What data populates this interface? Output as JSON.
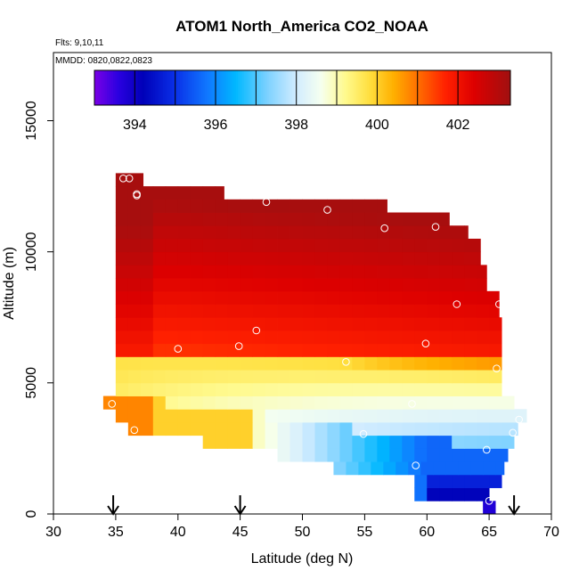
{
  "chart_data": {
    "type": "heatmap",
    "title": "ATOM1 North_America CO2_NOAA",
    "annotations": [
      "Flts: 9,10,11",
      "MMDD: 0820,0822,0823"
    ],
    "xlabel": "Latitude (deg N)",
    "ylabel": "Altitude (m)",
    "xlim": [
      30,
      70
    ],
    "ylim": [
      0,
      17600
    ],
    "x_ticks": [
      30,
      35,
      40,
      45,
      50,
      55,
      60,
      65,
      70
    ],
    "y_ticks": [
      0,
      5000,
      10000,
      15000
    ],
    "grid": false,
    "colorbar": {
      "placement": "top",
      "range": [
        393,
        403.3
      ],
      "ticks": [
        394,
        396,
        398,
        400,
        402
      ],
      "boundaries": [
        393,
        394,
        395,
        396,
        397,
        398,
        399,
        400,
        401,
        402,
        403.3
      ],
      "stops": [
        {
          "v": 393.0,
          "c": "#7a00e6"
        },
        {
          "v": 393.6,
          "c": "#2a00e0"
        },
        {
          "v": 394.2,
          "c": "#0000b8"
        },
        {
          "v": 395.0,
          "c": "#0a30e8"
        },
        {
          "v": 395.8,
          "c": "#1078ff"
        },
        {
          "v": 396.5,
          "c": "#00b8ff"
        },
        {
          "v": 397.3,
          "c": "#7fd2ff"
        },
        {
          "v": 398.0,
          "c": "#d2ecff"
        },
        {
          "v": 398.6,
          "c": "#f5fff0"
        },
        {
          "v": 399.2,
          "c": "#fffa90"
        },
        {
          "v": 399.8,
          "c": "#ffe040"
        },
        {
          "v": 400.4,
          "c": "#ffb000"
        },
        {
          "v": 401.0,
          "c": "#ff7000"
        },
        {
          "v": 401.7,
          "c": "#ff2000"
        },
        {
          "v": 402.4,
          "c": "#dd0000"
        },
        {
          "v": 403.3,
          "c": "#a01010"
        }
      ]
    },
    "flight_markers_latitude": [
      34.8,
      45.0,
      67.0
    ],
    "samples": [
      {
        "lat": 35.6,
        "alt": 12800
      },
      {
        "lat": 36.1,
        "alt": 12800
      },
      {
        "lat": 36.7,
        "alt": 12200
      },
      {
        "lat": 36.7,
        "alt": 12150
      },
      {
        "lat": 47.1,
        "alt": 11900
      },
      {
        "lat": 52.0,
        "alt": 11600
      },
      {
        "lat": 56.6,
        "alt": 10900
      },
      {
        "lat": 60.7,
        "alt": 10950
      },
      {
        "lat": 62.4,
        "alt": 8000
      },
      {
        "lat": 65.8,
        "alt": 8000
      },
      {
        "lat": 46.3,
        "alt": 7000
      },
      {
        "lat": 59.9,
        "alt": 6500
      },
      {
        "lat": 40.0,
        "alt": 6300
      },
      {
        "lat": 44.9,
        "alt": 6400
      },
      {
        "lat": 53.5,
        "alt": 5800
      },
      {
        "lat": 65.6,
        "alt": 5550
      },
      {
        "lat": 34.7,
        "alt": 4200
      },
      {
        "lat": 58.8,
        "alt": 4200
      },
      {
        "lat": 67.4,
        "alt": 3600
      },
      {
        "lat": 36.5,
        "alt": 3200
      },
      {
        "lat": 54.9,
        "alt": 3050
      },
      {
        "lat": 66.9,
        "alt": 3100
      },
      {
        "lat": 64.8,
        "alt": 2450
      },
      {
        "lat": 59.1,
        "alt": 1850
      },
      {
        "lat": 65.0,
        "alt": 500
      }
    ]
  }
}
